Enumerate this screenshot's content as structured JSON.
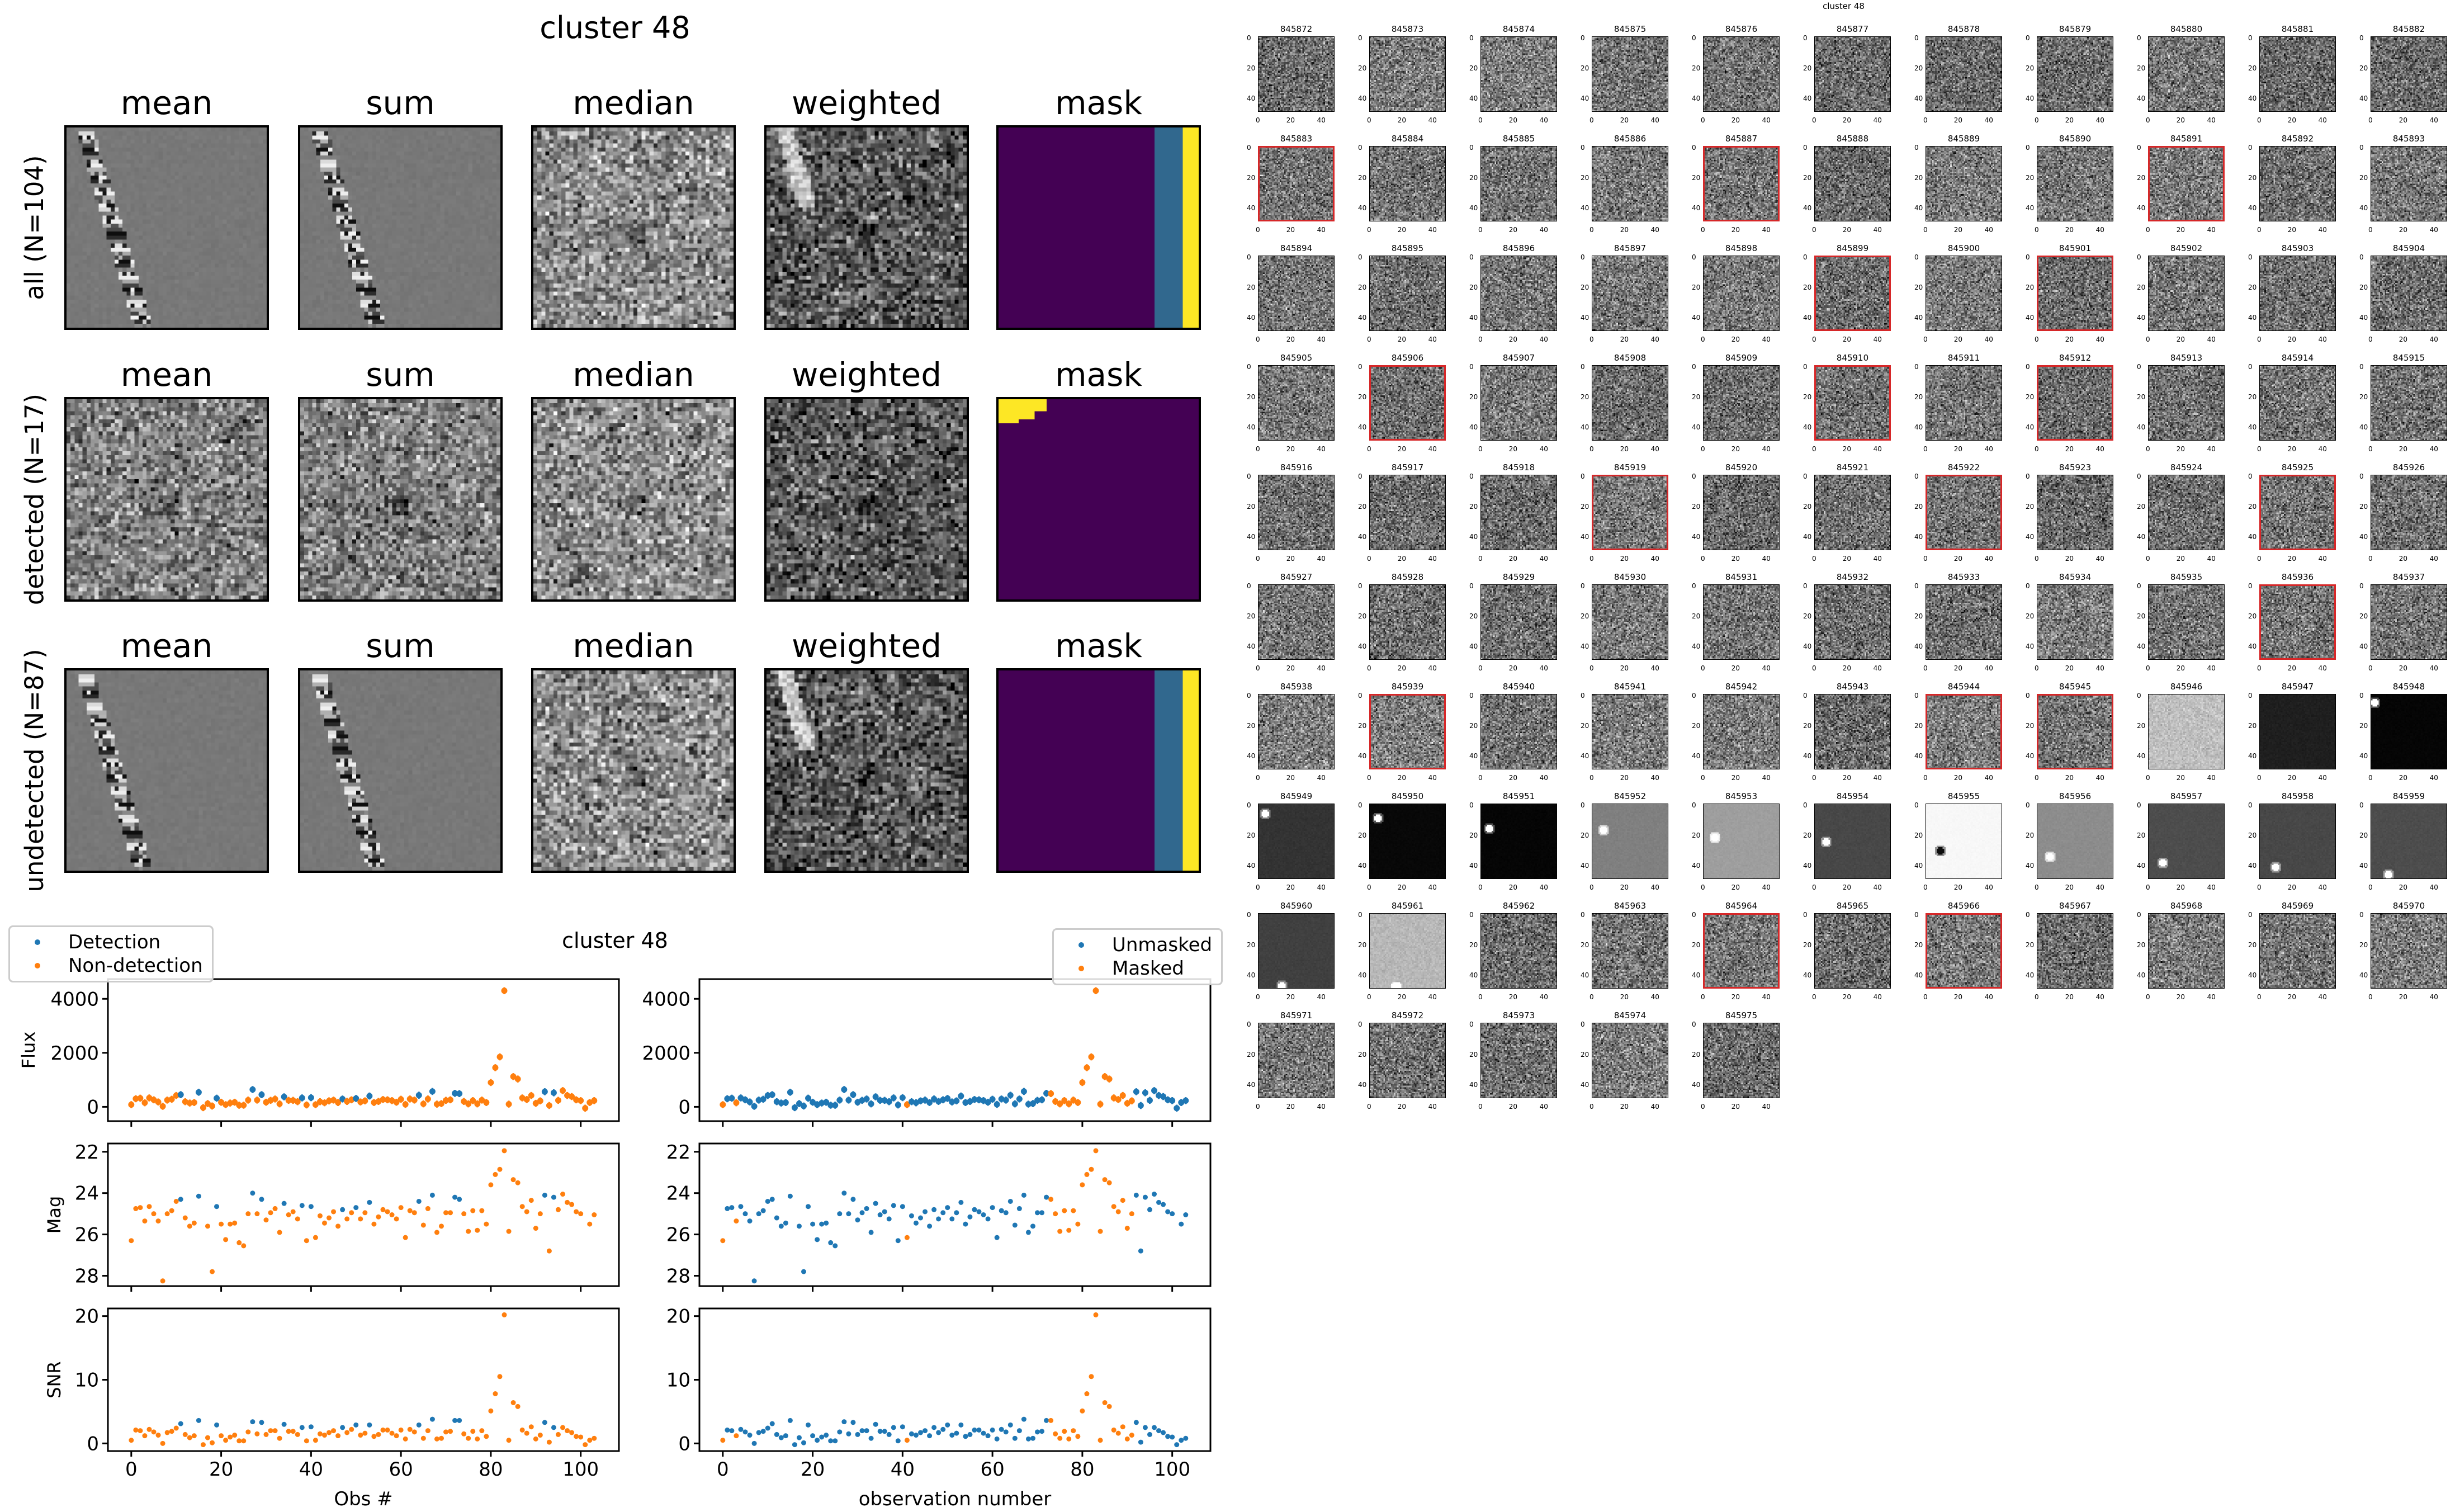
{
  "figure_title": "cluster 48",
  "image_panels": {
    "column_titles": [
      "mean",
      "sum",
      "median",
      "weighted",
      "mask"
    ],
    "rows": [
      {
        "label": "all (N=104)",
        "n": 104
      },
      {
        "label": "detected (N=17)",
        "n": 17
      },
      {
        "label": "undetected (N=87)",
        "n": 87
      }
    ]
  },
  "thumbnails": {
    "overlay_title": "cluster 48",
    "tick_labels": [
      "0",
      "20",
      "40"
    ],
    "first_id": 845872,
    "ids": [
      "845872",
      "845873",
      "845874",
      "845875",
      "845876",
      "845877",
      "845878",
      "845879",
      "845880",
      "845881",
      "845882",
      "845883",
      "845884",
      "845885",
      "845886",
      "845887",
      "845888",
      "845889",
      "845890",
      "845891",
      "845892",
      "845893",
      "845894",
      "845895",
      "845896",
      "845897",
      "845898",
      "845899",
      "845900",
      "845901",
      "845902",
      "845903",
      "845904",
      "845905",
      "845906",
      "845907",
      "845908",
      "845909",
      "845910",
      "845911",
      "845912",
      "845913",
      "845914",
      "845915",
      "845916",
      "845917",
      "845918",
      "845919",
      "845920",
      "845921",
      "845922",
      "845923",
      "845924",
      "845925",
      "845926",
      "845927",
      "845928",
      "845929",
      "845930",
      "845931",
      "845932",
      "845933",
      "845934",
      "845935",
      "845936",
      "845937",
      "845938",
      "845939",
      "845940",
      "845941",
      "845942",
      "845943",
      "845944",
      "845945",
      "845946",
      "845947",
      "845948",
      "845949",
      "845950",
      "845951",
      "845952",
      "845953",
      "845954",
      "845955",
      "845956",
      "845957",
      "845958",
      "845959",
      "845960",
      "845961",
      "845962",
      "845963",
      "845964",
      "845965",
      "845966",
      "845967",
      "845968",
      "845969",
      "845970",
      "845971",
      "845972",
      "845973",
      "845974",
      "845975"
    ],
    "detected_ids": [
      "845883",
      "845887",
      "845891",
      "845899",
      "845901",
      "845906",
      "845910",
      "845912",
      "845919",
      "845922",
      "845925",
      "845936",
      "845939",
      "845944",
      "845945",
      "845964",
      "845966"
    ]
  },
  "chart_data": {
    "type": "scatter",
    "title": "cluster 48",
    "colors": {
      "blue": "#1f77b4",
      "orange": "#ff7f0e"
    },
    "x": "observation index 0..103",
    "flux": [
      80,
      300,
      320,
      150,
      330,
      260,
      180,
      20,
      250,
      280,
      420,
      450,
      190,
      140,
      160,
      540,
      -30,
      120,
      30,
      320,
      170,
      80,
      140,
      170,
      60,
      60,
      250,
      640,
      250,
      450,
      170,
      240,
      290,
      110,
      370,
      240,
      240,
      190,
      330,
      70,
      340,
      80,
      190,
      150,
      220,
      250,
      160,
      290,
      200,
      260,
      310,
      180,
      220,
      400,
      160,
      200,
      270,
      260,
      230,
      170,
      280,
      90,
      290,
      250,
      430,
      110,
      290,
      570,
      100,
      120,
      240,
      260,
      500,
      490,
      200,
      110,
      230,
      110,
      250,
      160,
      900,
      1450,
      1850,
      4300,
      100,
      1120,
      1030,
      330,
      270,
      420,
      130,
      220,
      560,
      50,
      520,
      240,
      600,
      420,
      380,
      260,
      230,
      -50,
      160,
      230
    ],
    "flux_err": 130,
    "mag": [
      26.3,
      24.75,
      24.7,
      25.35,
      24.65,
      25.0,
      25.35,
      28.25,
      25.0,
      24.85,
      24.4,
      24.3,
      25.2,
      25.6,
      25.45,
      24.15,
      null,
      25.6,
      27.8,
      24.65,
      25.5,
      26.25,
      25.5,
      25.45,
      26.4,
      26.55,
      25.0,
      24.0,
      25.0,
      24.3,
      25.3,
      24.95,
      24.75,
      25.9,
      24.5,
      25.05,
      24.9,
      25.25,
      24.6,
      26.3,
      24.65,
      26.15,
      25.1,
      25.45,
      25.2,
      24.9,
      25.6,
      24.8,
      25.25,
      24.95,
      24.7,
      25.25,
      24.95,
      24.45,
      25.5,
      25.15,
      24.8,
      24.9,
      25.05,
      25.25,
      24.7,
      26.15,
      24.85,
      24.95,
      24.4,
      25.55,
      24.75,
      24.1,
      25.9,
      25.6,
      24.95,
      24.95,
      24.2,
      24.3,
      25.0,
      25.85,
      24.85,
      25.8,
      24.85,
      25.5,
      23.6,
      23.1,
      22.85,
      21.95,
      25.85,
      23.35,
      23.5,
      24.65,
      24.9,
      24.35,
      25.7,
      25.0,
      24.1,
      26.8,
      24.2,
      24.8,
      24.05,
      24.45,
      24.55,
      24.9,
      25.0,
      null,
      25.5,
      25.05
    ],
    "snr": [
      0.5,
      2.1,
      2.0,
      1.2,
      2.2,
      1.8,
      1.3,
      0.0,
      1.7,
      1.9,
      2.4,
      3.1,
      1.4,
      0.9,
      1.2,
      3.6,
      -0.2,
      0.9,
      0.1,
      2.9,
      1.2,
      0.5,
      1.0,
      1.3,
      0.4,
      0.4,
      1.8,
      3.4,
      1.5,
      3.3,
      1.4,
      2.0,
      2.0,
      0.8,
      3.0,
      1.9,
      1.9,
      1.4,
      2.5,
      0.4,
      2.6,
      0.5,
      1.5,
      1.3,
      1.7,
      2.0,
      1.2,
      2.5,
      1.7,
      2.2,
      2.9,
      1.3,
      1.6,
      2.9,
      1.1,
      1.4,
      2.1,
      2.1,
      1.6,
      1.2,
      2.1,
      0.7,
      2.2,
      1.8,
      2.9,
      0.8,
      2.0,
      3.8,
      0.7,
      0.8,
      1.8,
      1.9,
      3.6,
      3.6,
      1.5,
      0.8,
      1.9,
      0.7,
      2.0,
      1.1,
      5.1,
      7.8,
      10.5,
      20.2,
      0.5,
      6.4,
      5.8,
      2.1,
      1.6,
      2.6,
      0.7,
      1.3,
      3.3,
      0.2,
      2.5,
      1.4,
      2.5,
      2.0,
      1.7,
      1.1,
      1.0,
      -0.2,
      0.5,
      0.8
    ],
    "detected_indices": [
      11,
      15,
      19,
      27,
      29,
      34,
      38,
      40,
      47,
      50,
      53,
      64,
      67,
      72,
      73,
      92,
      94
    ],
    "masked_indices": [
      0,
      3,
      41,
      73,
      74,
      75,
      76,
      77,
      78,
      79,
      80,
      81,
      82,
      83,
      84,
      85,
      86,
      87,
      88,
      89,
      90,
      91
    ],
    "panels": [
      {
        "ylabel": "Flux",
        "ylim": [
          -530,
          4730
        ],
        "yticks": [
          0,
          2000,
          4000
        ],
        "ytick_labels": [
          "0",
          "2000",
          "4000"
        ],
        "inverted": false
      },
      {
        "ylabel": "Mag",
        "ylim": [
          28.5,
          21.6
        ],
        "yticks": [
          22,
          24,
          26,
          28
        ],
        "ytick_labels": [
          "22",
          "24",
          "26",
          "28"
        ],
        "inverted": true
      },
      {
        "ylabel": "SNR",
        "ylim": [
          -1.2,
          21.2
        ],
        "yticks": [
          0,
          10,
          20
        ],
        "ytick_labels": [
          "0",
          "10",
          "20"
        ],
        "inverted": false
      }
    ],
    "xlim": [
      -5.2,
      108.5
    ],
    "xticks": [
      0,
      20,
      40,
      60,
      80,
      100
    ],
    "xtick_labels": [
      "0",
      "20",
      "40",
      "60",
      "80",
      "100"
    ],
    "left": {
      "xlabel": "Obs #",
      "legend": [
        "Detection",
        "Non-detection"
      ],
      "legend_loc": "upper-left"
    },
    "right": {
      "xlabel": "observation number",
      "legend": [
        "Unmasked",
        "Masked"
      ],
      "legend_loc": "upper-right"
    },
    "subtitle": "cluster 48"
  }
}
